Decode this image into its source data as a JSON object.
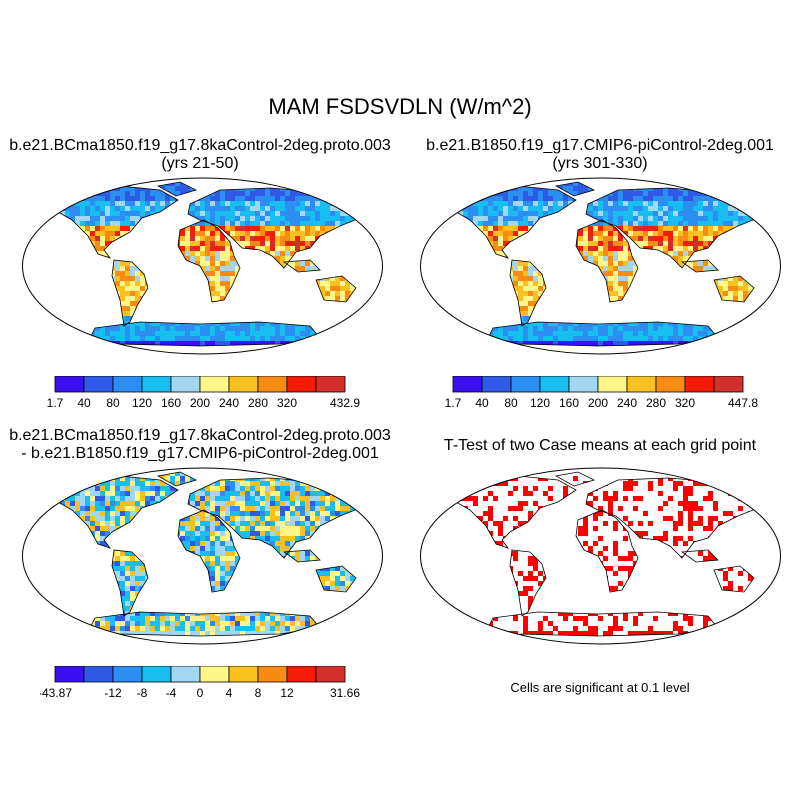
{
  "title": "MAM FSDSVDLN (W/m^2)",
  "panels": [
    {
      "id": "case1",
      "title_line1": "b.e21.BCma1850.f19_g17.8kaControl-2deg.proto.003",
      "title_line2": "(yrs 21-50)"
    },
    {
      "id": "case2",
      "title_line1": "b.e21.B1850.f19_g17.CMIP6-piControl-2deg.001",
      "title_line2": "(yrs 301-330)"
    },
    {
      "id": "diff",
      "title_line1": "b.e21.BCma1850.f19_g17.8kaControl-2deg.proto.003",
      "title_line2": "- b.e21.B1850.f19_g17.CMIP6-piControl-2deg.001"
    },
    {
      "id": "ttest",
      "title_line1": "T-Test of two Case means at each grid point",
      "title_line2": ""
    }
  ],
  "colorbars": {
    "case1": {
      "colors": [
        "#3a10f0",
        "#2f5ae6",
        "#2b8ef0",
        "#19bef0",
        "#a3d6f0",
        "#fff68a",
        "#f8c020",
        "#f68c14",
        "#f51c0a",
        "#d2302c"
      ],
      "labels": [
        "1.7",
        "40",
        "80",
        "120",
        "160",
        "200",
        "240",
        "280",
        "320",
        "",
        "432.9"
      ]
    },
    "case2": {
      "colors": [
        "#3a10f0",
        "#2f5ae6",
        "#2b8ef0",
        "#19bef0",
        "#a3d6f0",
        "#fff68a",
        "#f8c020",
        "#f68c14",
        "#f51c0a",
        "#d2302c"
      ],
      "labels": [
        "1.7",
        "40",
        "80",
        "120",
        "160",
        "200",
        "240",
        "280",
        "320",
        "",
        "447.8"
      ]
    },
    "diff": {
      "colors": [
        "#3a10f0",
        "#2f5ae6",
        "#2b8ef0",
        "#19bef0",
        "#a3d6f0",
        "#fff68a",
        "#f8c020",
        "#f68c14",
        "#f51c0a",
        "#d2302c"
      ],
      "labels": [
        "-43.87",
        "",
        "-12",
        "-8",
        "-4",
        "0",
        "4",
        "8",
        "12",
        "",
        "31.66"
      ]
    }
  },
  "ttest_note": "Cells are significant at 0.1 level",
  "significance_color": "#ff0000"
}
